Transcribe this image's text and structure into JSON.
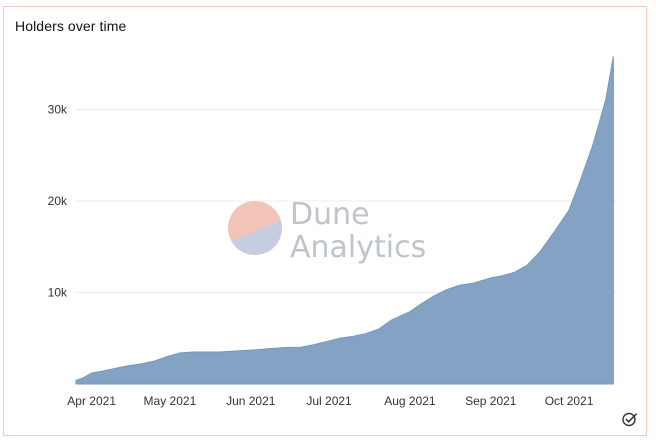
{
  "chart_data": {
    "type": "area",
    "title": "Holders over time",
    "xlabel": "",
    "ylabel": "",
    "x_tick_labels": [
      "Apr 2021",
      "May 2021",
      "Jun 2021",
      "Jul 2021",
      "Aug 2021",
      "Sep 2021",
      "Oct 2021"
    ],
    "y_tick_labels": [
      "10k",
      "20k",
      "30k"
    ],
    "y_ticks": [
      10000,
      20000,
      30000
    ],
    "ylim": [
      0,
      36500
    ],
    "xlim": [
      "2021-03-26",
      "2021-10-19"
    ],
    "grid": true,
    "legend": "none",
    "color": "#7f9fc2",
    "series": [
      {
        "x": [
          "2021-03-26",
          "2021-03-29",
          "2021-04-01",
          "2021-04-05",
          "2021-04-10",
          "2021-04-15",
          "2021-04-20",
          "2021-04-25",
          "2021-04-30",
          "2021-05-05",
          "2021-05-10",
          "2021-05-15",
          "2021-05-20",
          "2021-05-25",
          "2021-06-01",
          "2021-06-10",
          "2021-06-15",
          "2021-06-20",
          "2021-06-25",
          "2021-07-01",
          "2021-07-05",
          "2021-07-10",
          "2021-07-15",
          "2021-07-20",
          "2021-07-25",
          "2021-08-01",
          "2021-08-05",
          "2021-08-10",
          "2021-08-15",
          "2021-08-20",
          "2021-08-25",
          "2021-09-01",
          "2021-09-05",
          "2021-09-10",
          "2021-09-15",
          "2021-09-20",
          "2021-09-25",
          "2021-10-01",
          "2021-10-05",
          "2021-10-10",
          "2021-10-15",
          "2021-10-18"
        ],
        "y": [
          400,
          700,
          1200,
          1400,
          1700,
          2000,
          2200,
          2500,
          3000,
          3400,
          3500,
          3500,
          3500,
          3600,
          3700,
          3900,
          4000,
          4000,
          4300,
          4700,
          5000,
          5200,
          5500,
          6000,
          7000,
          7900,
          8700,
          9600,
          10300,
          10800,
          11000,
          11600,
          11800,
          12200,
          13000,
          14500,
          16500,
          19000,
          22000,
          26000,
          31000,
          35800
        ]
      }
    ]
  },
  "watermark": {
    "line1": "Dune",
    "line2": "Analytics",
    "colors": [
      "#f2c4b8",
      "#c5cde0"
    ]
  },
  "icons": {
    "corner": "check-circle-icon"
  }
}
